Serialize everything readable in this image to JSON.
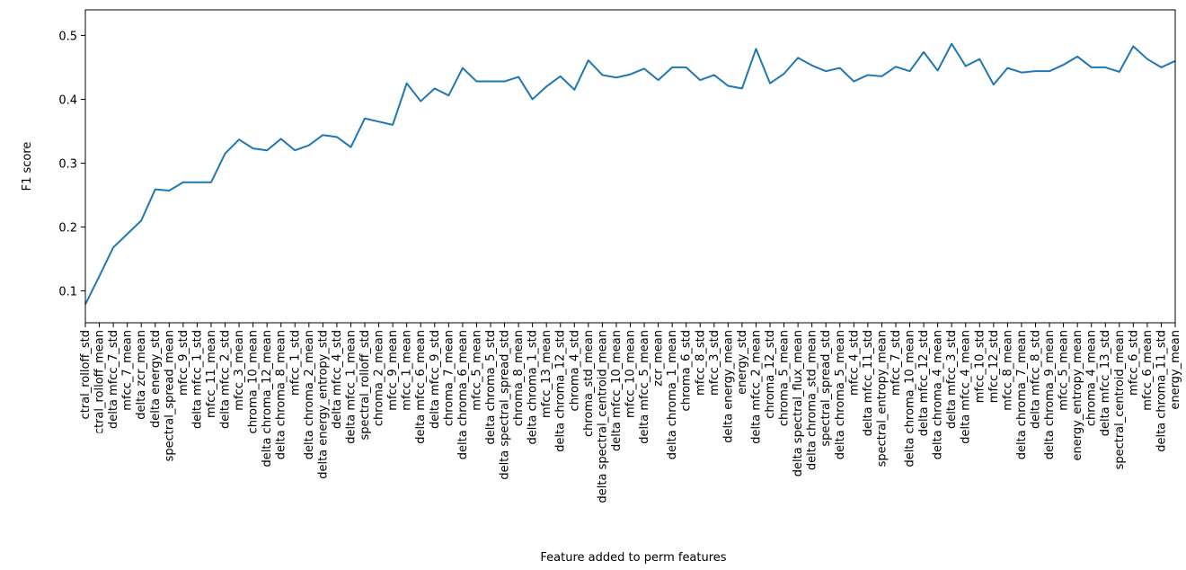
{
  "chart_data": {
    "type": "line",
    "title": "",
    "xlabel": "Feature added to perm features",
    "ylabel": "F1 score",
    "ylim": [
      0.05,
      0.54
    ],
    "yticks": [
      0.1,
      0.2,
      0.3,
      0.4,
      0.5
    ],
    "ytick_labels": [
      "0.1",
      "0.2",
      "0.3",
      "0.4",
      "0.5"
    ],
    "grid": false,
    "line_color": "#1f77b4",
    "categories": [
      "delta spectral_rolloff_std",
      "spectral_rolloff_mean",
      "delta mfcc_7_std",
      "mfcc_7_mean",
      "delta zcr_mean",
      "delta energy_std",
      "spectral_spread_mean",
      "mfcc_9_std",
      "delta mfcc_1_std",
      "mfcc_11_mean",
      "delta mfcc_2_std",
      "mfcc_3_mean",
      "chroma_10_mean",
      "delta chroma_12_mean",
      "delta chroma_8_mean",
      "mfcc_1_std",
      "delta chroma_2_mean",
      "delta energy_entropy_std",
      "delta mfcc_4_std",
      "delta mfcc_1_mean",
      "spectral_rolloff_std",
      "chroma_2_mean",
      "mfcc_9_mean",
      "mfcc_1_mean",
      "delta mfcc_6_mean",
      "delta mfcc_9_std",
      "chroma_7_mean",
      "delta chroma_6_mean",
      "mfcc_5_mean",
      "delta chroma_5_std",
      "delta spectral_spread_std",
      "chroma_8_mean",
      "delta chroma_1_std",
      "mfcc_13_mean",
      "delta chroma_12_std",
      "chroma_4_std",
      "chroma_std_mean",
      "delta spectral_centroid_mean",
      "delta mfcc_10_mean",
      "mfcc_10_mean",
      "delta mfcc_5_mean",
      "zcr_mean",
      "delta chroma_1_mean",
      "chroma_6_std",
      "mfcc_8_std",
      "mfcc_3_std",
      "delta energy_mean",
      "energy_std",
      "delta mfcc_2_mean",
      "chroma_12_std",
      "chroma_5_mean",
      "delta spectral_flux_mean",
      "delta chroma_std_mean",
      "spectral_spread_std",
      "delta chroma_5_mean",
      "mfcc_4_std",
      "delta mfcc_11_std",
      "spectral_entropy_mean",
      "mfcc_7_std",
      "delta chroma_10_mean",
      "delta mfcc_12_std",
      "delta chroma_4_mean",
      "delta mfcc_3_std",
      "delta mfcc_4_mean",
      "mfcc_10_std",
      "mfcc_12_std",
      "mfcc_8_mean",
      "delta chroma_7_mean",
      "delta mfcc_8_std",
      "delta chroma_9_mean",
      "mfcc_5_mean",
      "energy_entropy_mean",
      "chroma_4_mean",
      "delta mfcc_13_std",
      "spectral_centroid_mean",
      "mfcc_6_std",
      "mfcc_6_mean",
      "delta chroma_11_std",
      "energy_mean"
    ],
    "values": [
      0.079,
      0.123,
      0.168,
      0.189,
      0.21,
      0.259,
      0.257,
      0.27,
      0.27,
      0.27,
      0.315,
      0.337,
      0.323,
      0.32,
      0.338,
      0.32,
      0.328,
      0.344,
      0.341,
      0.325,
      0.37,
      0.365,
      0.36,
      0.425,
      0.397,
      0.417,
      0.406,
      0.449,
      0.428,
      0.428,
      0.428,
      0.435,
      0.4,
      0.42,
      0.436,
      0.415,
      0.461,
      0.438,
      0.434,
      0.439,
      0.448,
      0.43,
      0.45,
      0.45,
      0.43,
      0.438,
      0.421,
      0.417,
      0.479,
      0.425,
      0.44,
      0.465,
      0.453,
      0.444,
      0.449,
      0.428,
      0.438,
      0.436,
      0.451,
      0.444,
      0.474,
      0.445,
      0.487,
      0.452,
      0.463,
      0.423,
      0.449,
      0.442,
      0.444,
      0.444,
      0.454,
      0.467,
      0.45,
      0.45,
      0.443,
      0.483,
      0.463,
      0.45,
      0.46
    ]
  }
}
